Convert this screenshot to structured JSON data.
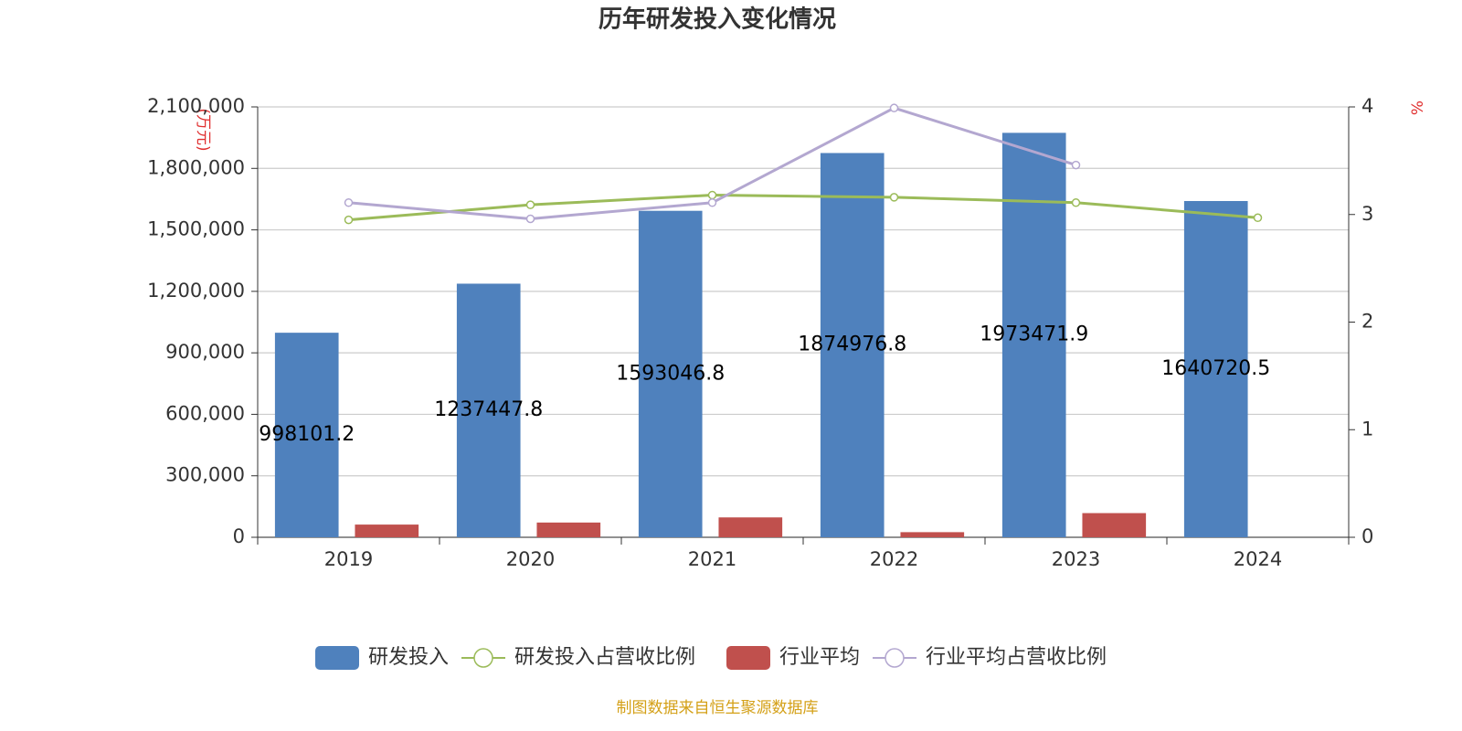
{
  "chart_data": {
    "type": "bar-line",
    "title": "历年研发投入变化情况",
    "y_label": "(万元)",
    "y2_label": "%",
    "source": "制图数据来自恒生聚源数据库",
    "categories": [
      "2019",
      "2020",
      "2021",
      "2022",
      "2023",
      "2024"
    ],
    "series": [
      {
        "name": "研发投入",
        "type": "bar",
        "color": "#4f81bd",
        "values": [
          998101.2,
          1237447.8,
          1593046.8,
          1874976.8,
          1973471.9,
          1640720.5
        ],
        "data_labels": true
      },
      {
        "name": "研发投入占营收比例",
        "type": "line",
        "axis": "y2",
        "color": "#9bbb59",
        "values": [
          2.95,
          3.09,
          3.18,
          3.16,
          3.11,
          2.97
        ]
      },
      {
        "name": "行业平均",
        "type": "bar",
        "color": "#c0504d",
        "values": [
          62000,
          72000,
          97000,
          25000,
          118000,
          null
        ]
      },
      {
        "name": "行业平均占营收比例",
        "type": "line",
        "axis": "y2",
        "color": "#b3a7d0",
        "values": [
          3.11,
          2.96,
          3.11,
          3.99,
          3.46,
          null
        ]
      }
    ],
    "ylim": [
      0,
      2100000
    ],
    "yticks": [
      0,
      {
        "value": 300000,
        "label": "300,000"
      },
      {
        "value": 600000,
        "label": "600,000"
      },
      {
        "value": 900000,
        "label": "900,000"
      },
      {
        "value": 1200000,
        "label": "1,200,000"
      },
      {
        "value": 1500000,
        "label": "1,500,000"
      },
      {
        "value": 1800000,
        "label": "1,800,000"
      },
      {
        "value": 2100000,
        "label": "2,100,000"
      }
    ],
    "y2lim": [
      0,
      4
    ],
    "y2ticks": [
      0,
      1,
      2,
      3,
      4
    ],
    "grid": true
  }
}
